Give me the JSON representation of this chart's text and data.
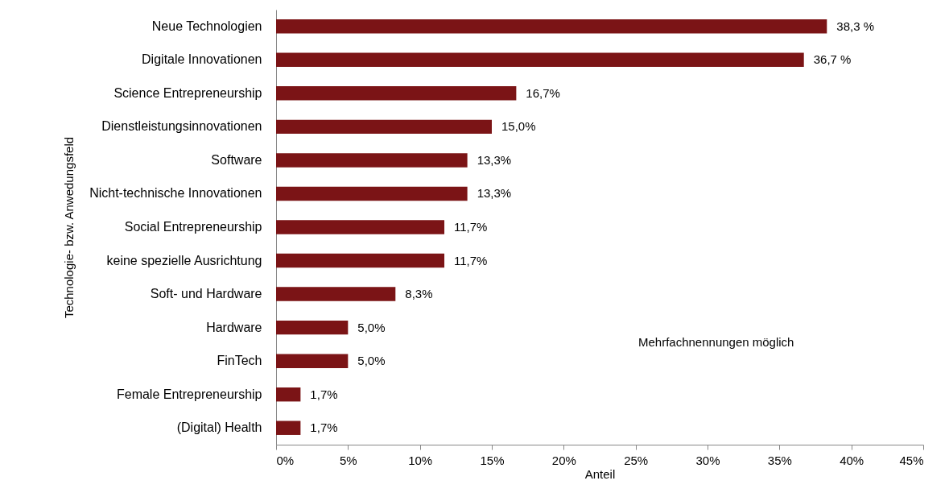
{
  "chart_data": {
    "type": "bar",
    "orientation": "horizontal",
    "xlabel": "Anteil",
    "ylabel": "Technologie- bzw. Anwedungsfeld",
    "categories": [
      "Neue Technologien",
      "Digitale Innovationen",
      "Science Entrepreneurship",
      "Dienstleistungsinnovationen",
      "Software",
      "Nicht-technische Innovationen",
      "Social Entrepreneurship",
      "keine spezielle Ausrichtung",
      "Soft- und Hardware",
      "Hardware",
      "FinTech",
      "Female Entrepreneurship",
      "(Digital) Health"
    ],
    "values": [
      38.3,
      36.7,
      16.7,
      15.0,
      13.3,
      13.3,
      11.7,
      11.7,
      8.3,
      5.0,
      5.0,
      1.7,
      1.7
    ],
    "value_labels": [
      "38,3 %",
      "36,7 %",
      "16,7%",
      "15,0%",
      "13,3%",
      "13,3%",
      "11,7%",
      "11,7%",
      "8,3%",
      "5,0%",
      "5,0%",
      "1,7%",
      "1,7%"
    ],
    "color": "#7b1416",
    "xlim": [
      0,
      45
    ],
    "xticks": [
      {
        "value": 0,
        "label": "0%"
      },
      {
        "value": 5,
        "label": "5%"
      },
      {
        "value": 10,
        "label": "10%"
      },
      {
        "value": 15,
        "label": "15%"
      },
      {
        "value": 20,
        "label": "20%"
      },
      {
        "value": 25,
        "label": "25%"
      },
      {
        "value": 30,
        "label": "30%"
      },
      {
        "value": 35,
        "label": "35%"
      },
      {
        "value": 40,
        "label": "40%"
      },
      {
        "value": 45,
        "label": "45%"
      }
    ],
    "grid": false,
    "annotations": [
      "Mehrfachnennungen möglich"
    ]
  }
}
